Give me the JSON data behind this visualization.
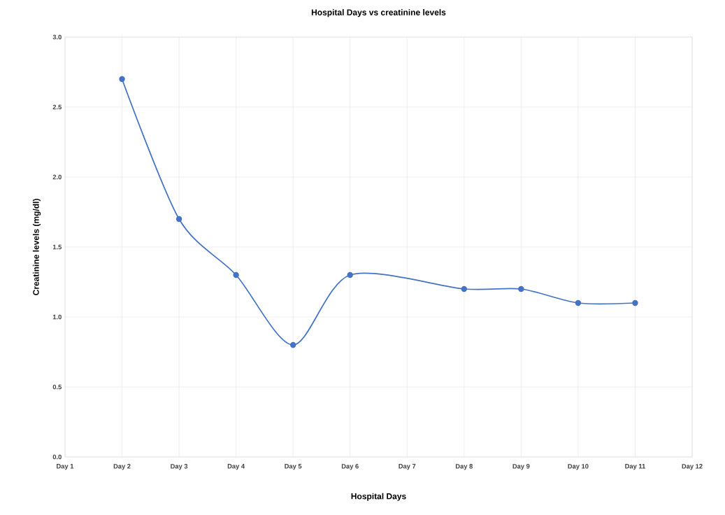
{
  "chart_data": {
    "type": "line",
    "title": "Hospital Days vs creatinine levels",
    "xlabel": "Hospital Days",
    "ylabel": "Creatinine levels (mg/dl)",
    "categories": [
      "Day 1",
      "Day 2",
      "Day 3",
      "Day 4",
      "Day 5",
      "Day 6",
      "Day 7",
      "Day 8",
      "Day 9",
      "Day 10",
      "Day 11",
      "Day 12"
    ],
    "values": [
      null,
      2.7,
      1.7,
      1.3,
      0.8,
      1.3,
      null,
      1.2,
      1.2,
      1.1,
      1.1,
      null
    ],
    "color": "#4472c4",
    "marker": "circle",
    "line_style": "solid",
    "grid": true,
    "ylim": [
      0,
      3
    ],
    "yticks": [
      {
        "value": 0,
        "label": "0.0"
      },
      {
        "value": 0.5,
        "label": "0.5"
      },
      {
        "value": 1,
        "label": "1.0"
      },
      {
        "value": 1.5,
        "label": "1.5"
      },
      {
        "value": 2,
        "label": "2.0"
      },
      {
        "value": 2.5,
        "label": "2.5"
      },
      {
        "value": 3,
        "label": "3.0"
      }
    ]
  }
}
